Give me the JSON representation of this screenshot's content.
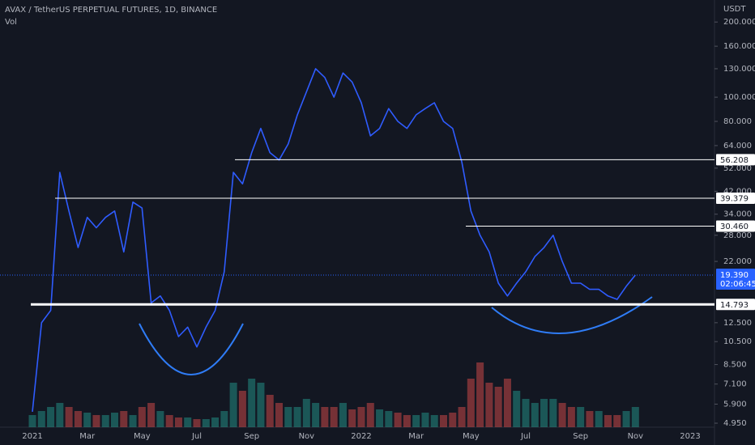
{
  "chart_data": {
    "type": "line",
    "title": "AVAX / TetherUS PERPETUAL FUTURES, 1D, BINANCE",
    "y_axis_label": "USDT",
    "log_scale": true,
    "categories": [
      "2021",
      null,
      null,
      null,
      null,
      null,
      "Mar",
      null,
      null,
      null,
      null,
      null,
      "May",
      null,
      null,
      null,
      null,
      null,
      "Jul",
      null,
      null,
      null,
      null,
      null,
      "Sep",
      null,
      null,
      null,
      null,
      null,
      "Nov",
      null,
      null,
      null,
      null,
      null,
      "2022",
      null,
      null,
      null,
      null,
      null,
      "Mar",
      null,
      null,
      null,
      null,
      null,
      "May",
      null,
      null,
      null,
      null,
      null,
      "Jul",
      null,
      null,
      null,
      null,
      null,
      "Sep",
      null,
      null,
      null,
      null,
      null,
      "Nov",
      null,
      null,
      null,
      null,
      null,
      "2023",
      null,
      null
    ],
    "series": [
      {
        "color": "#2f5cff",
        "values": [
          5.5,
          12.5,
          14,
          50,
          35,
          25,
          33,
          30,
          33,
          35,
          24,
          38,
          36,
          15,
          16,
          14,
          11,
          12,
          10,
          12,
          14,
          20,
          50,
          45,
          60,
          75,
          60,
          56,
          65,
          85,
          105,
          130,
          120,
          100,
          125,
          115,
          95,
          70,
          75,
          90,
          80,
          75,
          85,
          90,
          95,
          80,
          75,
          55,
          35,
          28,
          24,
          18,
          16,
          18,
          20,
          23,
          25,
          28,
          22,
          18,
          18,
          17,
          17,
          16,
          15.5,
          17.5,
          19.39,
          null,
          null,
          null,
          null,
          null,
          null,
          null,
          null
        ]
      },
      {
        "name": "Vol",
        "type": "bar",
        "axis": "y2",
        "values": [
          15,
          20,
          25,
          30,
          25,
          20,
          18,
          15,
          15,
          18,
          20,
          15,
          25,
          30,
          20,
          15,
          12,
          12,
          10,
          10,
          12,
          20,
          55,
          45,
          60,
          55,
          40,
          30,
          25,
          25,
          35,
          30,
          25,
          25,
          30,
          22,
          25,
          30,
          22,
          20,
          18,
          15,
          15,
          18,
          15,
          15,
          18,
          25,
          60,
          80,
          55,
          50,
          60,
          45,
          35,
          30,
          35,
          35,
          30,
          25,
          25,
          20,
          20,
          15,
          15,
          20,
          25,
          null,
          null,
          null,
          null,
          null,
          null,
          null,
          null
        ]
      }
    ],
    "ylim": [
      4.77,
      245
    ],
    "yticks": [
      {
        "value": 200,
        "label": "200.000"
      },
      {
        "value": 160,
        "label": "160.000"
      },
      {
        "value": 130,
        "label": "130.000"
      },
      {
        "value": 100,
        "label": "100.000"
      },
      {
        "value": 80,
        "label": "80.000"
      },
      {
        "value": 64,
        "label": "64.000"
      },
      {
        "value": 52,
        "label": "52.000"
      },
      {
        "value": 42,
        "label": "42.000"
      },
      {
        "value": 34,
        "label": "34.000"
      },
      {
        "value": 28,
        "label": "28.000"
      },
      {
        "value": 22,
        "label": "22.000"
      },
      {
        "value": 12.5,
        "label": "12.500"
      },
      {
        "value": 10.5,
        "label": "10.500"
      },
      {
        "value": 8.5,
        "label": "8.500"
      },
      {
        "value": 7.1,
        "label": "7.100"
      },
      {
        "value": 5.9,
        "label": "5.900"
      },
      {
        "value": 4.95,
        "label": "4.950"
      }
    ],
    "y2lim": [
      0,
      100
    ],
    "levels": [
      {
        "value": 56.208,
        "label": "56.208"
      },
      {
        "value": 39.379,
        "label": "39.379"
      },
      {
        "value": 30.46,
        "label": "30.460"
      },
      {
        "value": 14.793,
        "label": "14.793"
      }
    ],
    "last_price": {
      "value": 19.39,
      "label": "19.390"
    },
    "countdown": "02:06:45"
  }
}
